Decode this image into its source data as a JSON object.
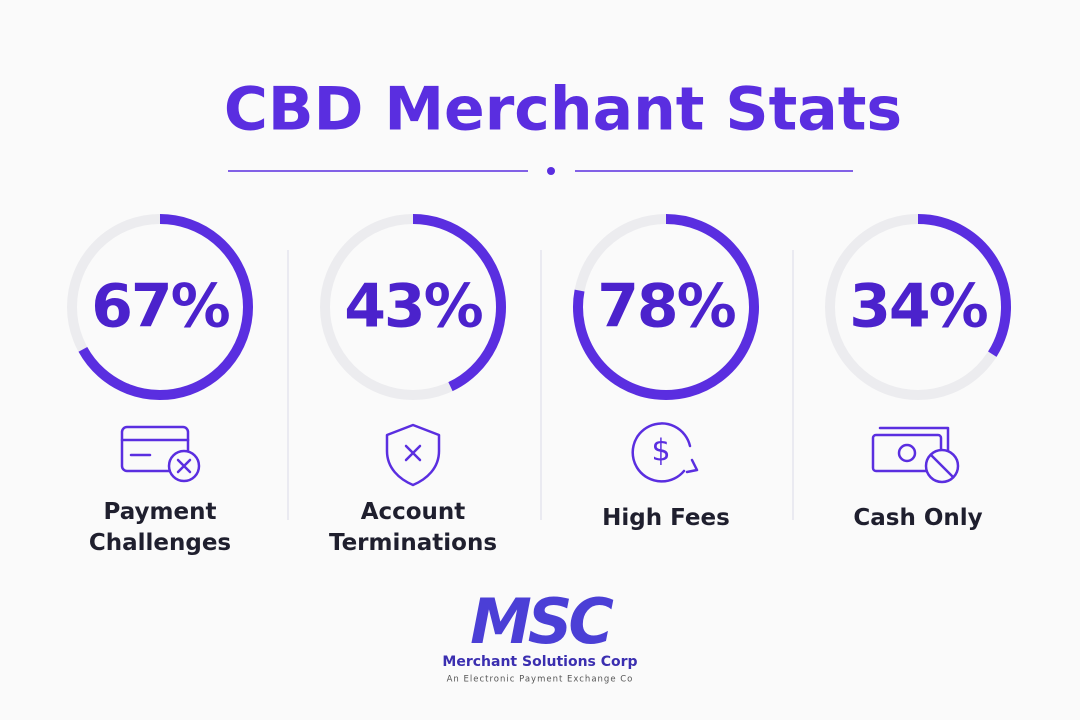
{
  "title": "CBD Merchant Stats",
  "stats": [
    {
      "value": 67,
      "value_label": "67%",
      "label": "Payment Challenges"
    },
    {
      "value": 43,
      "value_label": "43%",
      "label": "Account Terminations"
    },
    {
      "value": 78,
      "value_label": "78%",
      "label": "High Fees"
    },
    {
      "value": 34,
      "value_label": "34%",
      "label": "Cash Only"
    }
  ],
  "logo": {
    "mark": "MSC",
    "name": "Merchant Solutions Corp",
    "tagline": "An Electronic Payment Exchange Co"
  }
}
